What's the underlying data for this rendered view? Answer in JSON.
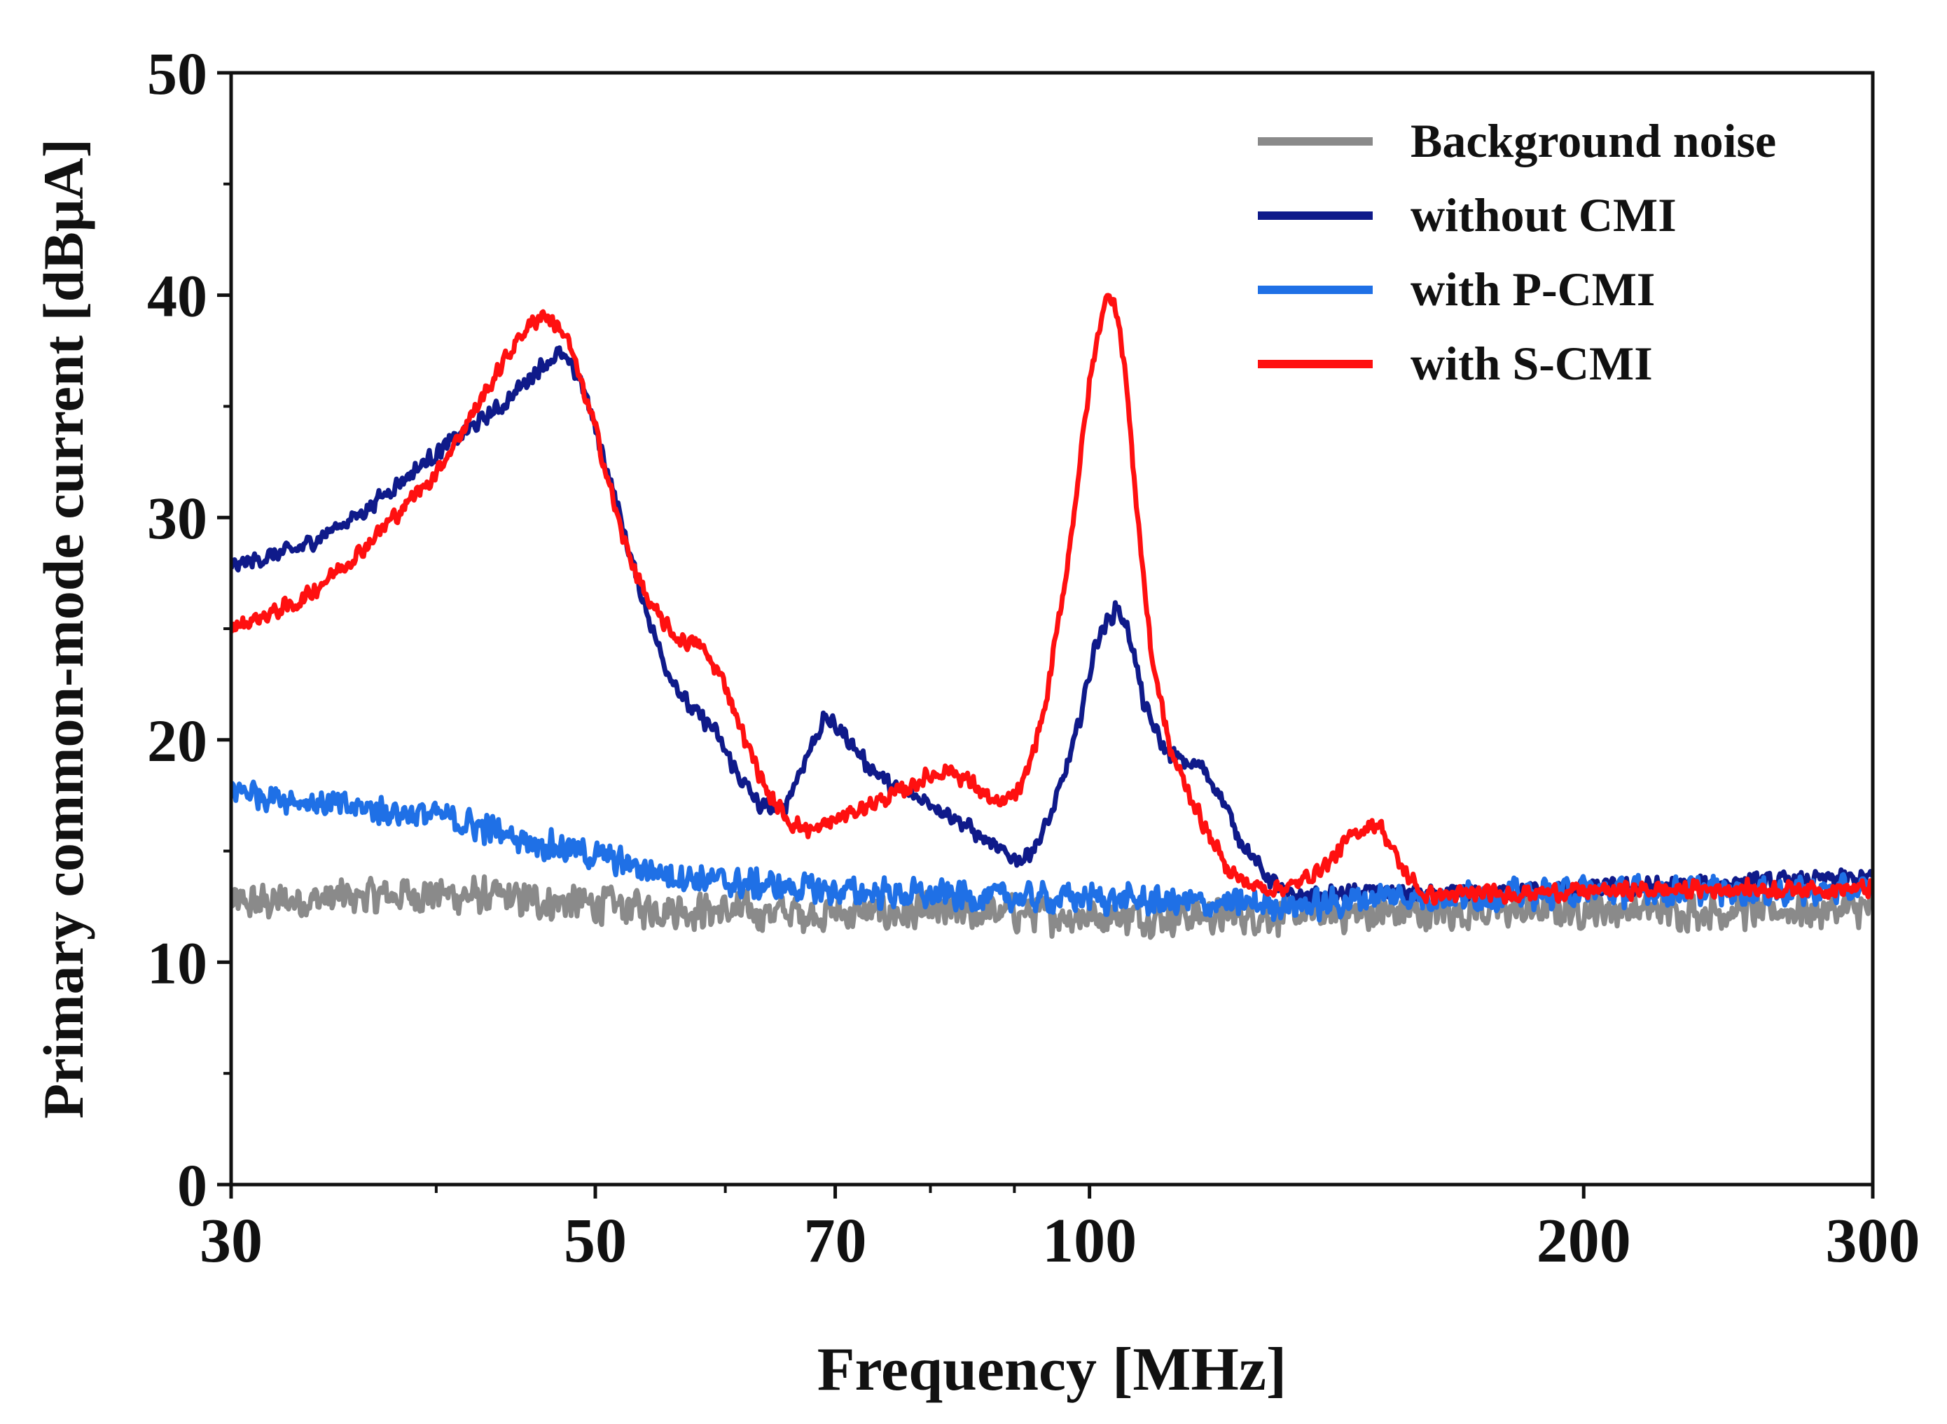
{
  "chart_data": {
    "type": "line",
    "title": "",
    "xlabel": "Frequency [MHz]",
    "ylabel": "Primary common-mode current [dBμA]",
    "xscale": "log",
    "xlim": [
      30,
      300
    ],
    "ylim": [
      0,
      50
    ],
    "xticks": [
      30,
      50,
      70,
      100,
      200,
      300
    ],
    "xtick_labels": [
      "30",
      "50",
      "70",
      "100",
      "200",
      "300"
    ],
    "xminor_ticks": [
      40,
      60,
      80,
      90
    ],
    "yticks": [
      0,
      10,
      20,
      30,
      40,
      50
    ],
    "ytick_labels": [
      "0",
      "10",
      "20",
      "30",
      "40",
      "50"
    ],
    "grid": false,
    "legend_position": "top-right",
    "series": [
      {
        "name": "Background noise",
        "color": "#8a8a8a",
        "noise": 1.0,
        "x": [
          30,
          35,
          40,
          45,
          50,
          55,
          60,
          70,
          80,
          90,
          100,
          120,
          150,
          200,
          250,
          300
        ],
        "y": [
          12.6,
          12.9,
          13.1,
          12.8,
          12.6,
          12.4,
          12.3,
          12.2,
          12.2,
          12.2,
          12.1,
          12.1,
          12.2,
          12.4,
          12.3,
          12.4
        ]
      },
      {
        "name": "without CMI",
        "color": "#0f1a8a",
        "noise": 0.45,
        "x": [
          30,
          33,
          36,
          40,
          44,
          46,
          47.5,
          49,
          51,
          53,
          55,
          57,
          59,
          61,
          63,
          65,
          67,
          69,
          71,
          73,
          76,
          80,
          84,
          88,
          91,
          93,
          95,
          98,
          101,
          104,
          106,
          108,
          111,
          114,
          117,
          120,
          123,
          127,
          132,
          140,
          150,
          160,
          200,
          250,
          300
        ],
        "y": [
          27.8,
          28.6,
          30.2,
          32.9,
          35.1,
          36.6,
          37.4,
          36.2,
          31.8,
          27.2,
          23.5,
          21.5,
          20.5,
          18.5,
          17.0,
          16.8,
          19.0,
          21.0,
          20.2,
          19.0,
          17.8,
          17.2,
          16.2,
          15.0,
          14.6,
          15.4,
          16.8,
          20.0,
          24.5,
          26.0,
          24.5,
          21.5,
          19.6,
          19.0,
          18.8,
          17.6,
          15.8,
          14.2,
          13.0,
          13.0,
          13.2,
          13.0,
          13.3,
          13.6,
          13.8
        ]
      },
      {
        "name": "with P-CMI",
        "color": "#1f70e6",
        "noise": 0.8,
        "x": [
          30,
          35,
          40,
          45,
          50,
          55,
          60,
          70,
          80,
          90,
          100,
          120,
          140,
          150,
          160,
          200,
          250,
          300
        ],
        "y": [
          17.8,
          17.0,
          16.6,
          15.6,
          14.8,
          14.0,
          13.6,
          13.2,
          13.0,
          12.9,
          12.9,
          12.6,
          12.6,
          13.0,
          12.9,
          13.2,
          13.2,
          13.2
        ]
      },
      {
        "name": "with S-CMI",
        "color": "#ff1010",
        "noise": 0.45,
        "x": [
          30,
          33,
          36,
          40,
          43,
          45,
          46.5,
          48,
          50,
          52,
          54,
          56,
          58,
          60,
          62,
          64,
          66,
          68,
          70,
          73,
          76,
          79,
          82,
          85,
          88,
          91,
          94,
          97,
          100,
          102,
          103.5,
          105,
          107,
          109,
          112,
          115,
          118,
          121,
          124,
          128,
          133,
          140,
          145,
          150,
          155,
          160,
          200,
          250,
          300
        ],
        "y": [
          25.0,
          26.2,
          28.5,
          32.0,
          35.8,
          38.2,
          39.2,
          38.2,
          34.0,
          29.0,
          26.0,
          24.6,
          24.2,
          22.5,
          19.6,
          17.3,
          16.2,
          15.9,
          16.4,
          17.0,
          17.5,
          18.2,
          18.7,
          18.0,
          17.0,
          17.8,
          21.5,
          28.0,
          36.0,
          39.6,
          40.0,
          37.0,
          30.0,
          24.0,
          19.5,
          17.6,
          15.8,
          14.4,
          13.6,
          13.3,
          13.4,
          14.5,
          15.8,
          16.3,
          14.2,
          13.0,
          13.2,
          13.3,
          13.3
        ]
      }
    ]
  }
}
